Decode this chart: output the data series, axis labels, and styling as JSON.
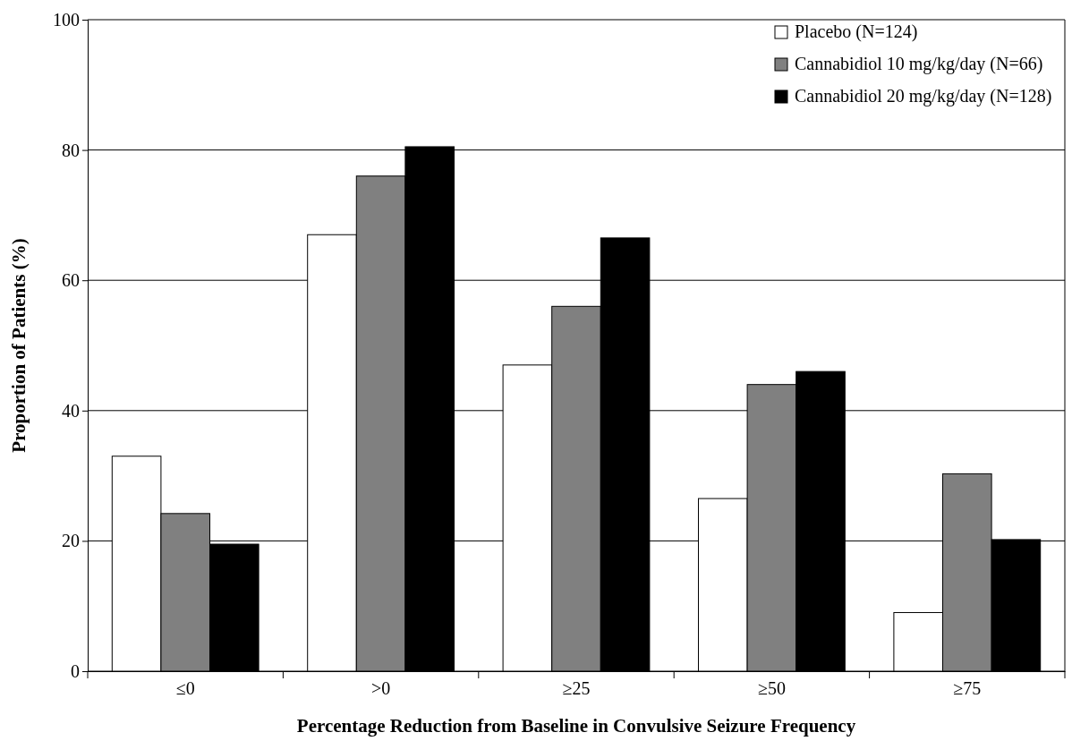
{
  "chart_data": {
    "type": "bar",
    "xlabel": "Percentage Reduction from Baseline in Convulsive Seizure Frequency",
    "ylabel": "Proportion of Patients (%)",
    "categories": [
      "≤0",
      ">0",
      "≥25",
      "≥50",
      "≥75"
    ],
    "series": [
      {
        "name": "Placebo (N=124)",
        "color": "#ffffff",
        "values": [
          33,
          67,
          47,
          26.5,
          9
        ]
      },
      {
        "name": "Cannabidiol 10 mg/kg/day (N=66)",
        "color": "#808080",
        "values": [
          24.2,
          76,
          56,
          44,
          30.3
        ]
      },
      {
        "name": "Cannabidiol 20 mg/kg/day (N=128)",
        "color": "#000000",
        "values": [
          19.5,
          80.5,
          66.5,
          46,
          20.2
        ]
      }
    ],
    "ylim": [
      0,
      100
    ],
    "yticks": [
      0,
      20,
      40,
      60,
      80,
      100
    ],
    "grid": "y",
    "legend": "top right"
  }
}
